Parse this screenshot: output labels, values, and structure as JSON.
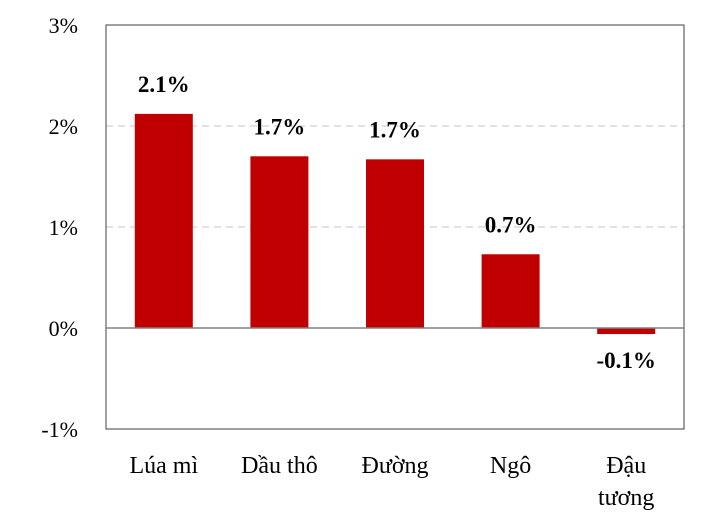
{
  "chart_data": {
    "type": "bar",
    "categories": [
      [
        "Lúa mì"
      ],
      [
        "Dầu thô"
      ],
      [
        "Đường"
      ],
      [
        "Ngô"
      ],
      [
        "Đậu",
        "tương"
      ]
    ],
    "values": [
      2.12,
      1.7,
      1.67,
      0.73,
      -0.06
    ],
    "data_labels": [
      "2.1%",
      "1.7%",
      "1.7%",
      "0.7%",
      "-0.1%"
    ],
    "y_ticks": [
      3,
      2,
      1,
      0,
      -1
    ],
    "y_tick_labels": [
      "3%",
      "2%",
      "1%",
      "0%",
      "-1%"
    ],
    "ylim": [
      -1,
      3
    ],
    "grid": "horizontal dashed",
    "bar_color": "#C00000",
    "title": "",
    "xlabel": "",
    "ylabel": ""
  }
}
